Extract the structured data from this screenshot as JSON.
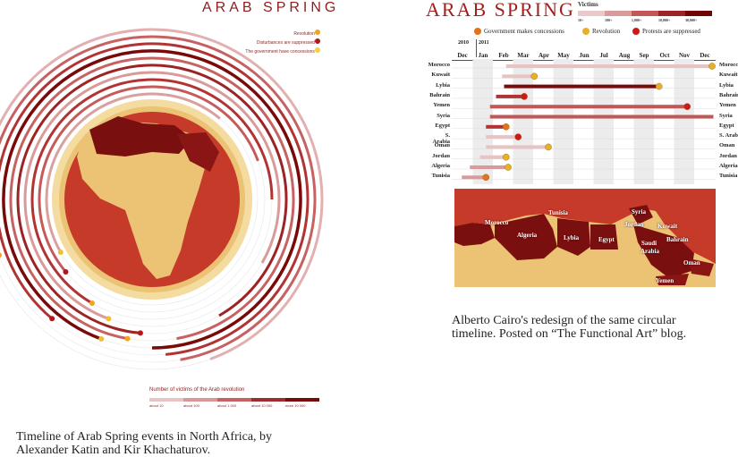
{
  "left": {
    "title": "ARAB SPRING",
    "legend": [
      {
        "label": "Revolution -",
        "color": "#f0a41e"
      },
      {
        "label": "Disturbances are suppressed -",
        "color": "#b2171b"
      },
      {
        "label": "The government have concessions -",
        "color": "#f2d23a"
      }
    ],
    "victims_caption": "Number of victims of the Arab revolution",
    "victims_scale": [
      {
        "label": "about 10",
        "color": "#e9c3c3"
      },
      {
        "label": "about 100",
        "color": "#d99797"
      },
      {
        "label": "about 1 000",
        "color": "#c66262"
      },
      {
        "label": "about 10 000",
        "color": "#a22c2c"
      },
      {
        "label": "more 10 000",
        "color": "#7a0a0a"
      }
    ],
    "caption": "Timeline of Arab Spring events in North Africa, by Alexander Katin and Kir Khachaturov."
  },
  "right": {
    "title": "ARAB SPRING",
    "victims_label": "Victims",
    "victims_scale": [
      {
        "label": "10+",
        "color": "#e9c9c9"
      },
      {
        "label": "100+",
        "color": "#d99a9a"
      },
      {
        "label": "1,000+",
        "color": "#c05858"
      },
      {
        "label": "10,000+",
        "color": "#9c2424"
      },
      {
        "label": "30,000+",
        "color": "#6e0606"
      }
    ],
    "legend": [
      {
        "label": "Government makes concessions",
        "color": "#e2731c"
      },
      {
        "label": "Revolution",
        "color": "#e6b02a"
      },
      {
        "label": "Protests are suppressed",
        "color": "#cc1a1a"
      }
    ],
    "years": [
      "2010",
      "2011"
    ],
    "months": [
      "Dec",
      "Jan",
      "Feb",
      "Mar",
      "Apr",
      "May",
      "Jun",
      "Jul",
      "Aug",
      "Sep",
      "Oct",
      "Nov",
      "Dec"
    ],
    "countries_left": [
      "Morocco",
      "Kuwait",
      "Lybia",
      "Bahrain",
      "Yemen",
      "Syria",
      "Egypt",
      "S. Arabia",
      "Oman",
      "Jordan",
      "Algeria",
      "Tunisia"
    ],
    "countries_right": [
      "Morocco",
      "Kuwait",
      "Lybia",
      "Bahrain",
      "Yemen",
      "Syria",
      "Egypt",
      "S. Arab",
      "Oman",
      "Jordan",
      "Algeria",
      "Tunisia"
    ],
    "map_labels": [
      "Morocco",
      "Tunisia",
      "Algeria",
      "Lybia",
      "Egypt",
      "Syria",
      "Jordan",
      "Kuwait",
      "Saudi",
      "Arabia",
      "Bahrain",
      "Oman",
      "Yemen"
    ],
    "caption": "Alberto Cairo's redesign of the same circular timeline. Posted on “The Functional Art” blog."
  }
}
